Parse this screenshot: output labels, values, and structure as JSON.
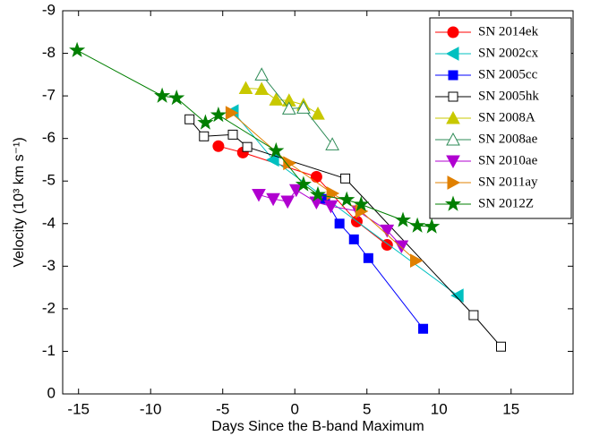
{
  "chart_data": {
    "type": "line",
    "xlabel": "Days Since the B-band Maximum",
    "ylabel": "Velocity (10³ km s⁻¹)",
    "xlim": [
      -16.1,
      19.3
    ],
    "xticks": [
      -15,
      -10,
      -5,
      0,
      5,
      10,
      15
    ],
    "ylim": [
      0,
      -9
    ],
    "yticks": [
      0,
      -1,
      -2,
      -3,
      -4,
      -5,
      -6,
      -7,
      -8,
      -9
    ],
    "legend": "upper right",
    "series": [
      {
        "name": "SN 2014ek",
        "color": "#ff0000",
        "marker": "circle",
        "x": [
          -5.3,
          -3.6,
          1.5,
          4.3,
          6.4
        ],
        "values": [
          -5.82,
          -5.67,
          -5.1,
          -4.05,
          -3.5
        ]
      },
      {
        "name": "SN 2002cx",
        "color": "#00c0c0",
        "marker": "triangle-left",
        "x": [
          -4.3,
          -1.5,
          11.3
        ],
        "values": [
          -6.64,
          -5.5,
          -2.31
        ]
      },
      {
        "name": "SN 2005cc",
        "color": "#0000ff",
        "marker": "square",
        "x": [
          2.1,
          3.1,
          4.1,
          5.1,
          8.9
        ],
        "values": [
          -4.58,
          -4.0,
          -3.63,
          -3.19,
          -1.53
        ]
      },
      {
        "name": "SN 2005hk",
        "color": "#000000",
        "marker": "square-open",
        "x": [
          -7.3,
          -6.3,
          -4.3,
          -3.3,
          3.5,
          12.4,
          14.3
        ],
        "values": [
          -6.45,
          -6.05,
          -6.09,
          -5.8,
          -5.06,
          -1.85,
          -1.11
        ]
      },
      {
        "name": "SN 2008A",
        "color": "#c8c800",
        "marker": "triangle-up",
        "x": [
          -3.4,
          -2.3,
          -1.3,
          -0.4,
          0.6,
          1.6
        ],
        "values": [
          -7.18,
          -7.16,
          -6.91,
          -6.89,
          -6.79,
          -6.58
        ]
      },
      {
        "name": "SN 2008ae",
        "color": "#2e8b57",
        "marker": "triangle-up-open",
        "x": [
          -2.3,
          -0.4,
          0.6,
          2.6
        ],
        "values": [
          -7.5,
          -6.7,
          -6.72,
          -5.86
        ]
      },
      {
        "name": "SN 2010ae",
        "color": "#b000d0",
        "marker": "triangle-down",
        "x": [
          -2.5,
          -1.5,
          -0.5,
          0.1,
          1.5,
          2.5,
          4.4,
          6.4,
          7.4
        ],
        "values": [
          -4.68,
          -4.58,
          -4.52,
          -4.79,
          -4.5,
          -4.41,
          -4.29,
          -3.84,
          -3.47
        ]
      },
      {
        "name": "SN 2011ay",
        "color": "#e08000",
        "marker": "triangle-right",
        "x": [
          -4.4,
          -0.4,
          2.6,
          4.6,
          8.4
        ],
        "values": [
          -6.6,
          -5.42,
          -4.71,
          -4.29,
          -3.13
        ]
      },
      {
        "name": "SN 2012Z",
        "color": "#007f00",
        "marker": "star",
        "x": [
          -15.1,
          -9.2,
          -8.2,
          -6.2,
          -5.3,
          -1.3,
          0.6,
          1.6,
          3.6,
          4.6,
          7.5,
          8.5,
          9.5
        ],
        "values": [
          -8.07,
          -7.0,
          -6.95,
          -6.37,
          -6.55,
          -5.71,
          -4.92,
          -4.68,
          -4.56,
          -4.45,
          -4.08,
          -3.95,
          -3.93
        ]
      }
    ]
  }
}
